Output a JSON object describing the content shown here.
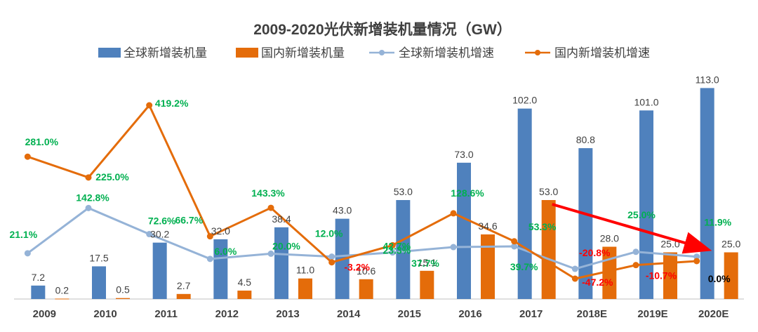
{
  "chart_data": {
    "type": "bar",
    "title": "2009-2020光伏新增装机量情况（GW）",
    "categories": [
      "2009",
      "2010",
      "2011",
      "2012",
      "2013",
      "2014",
      "2015",
      "2016",
      "2017",
      "2018E",
      "2019E",
      "2020E"
    ],
    "series": [
      {
        "name": "全球新增装机量",
        "kind": "bar",
        "color": "#4f81bd",
        "values": [
          7.2,
          17.5,
          30.2,
          32.0,
          38.4,
          43.0,
          53.0,
          73.0,
          102.0,
          80.8,
          101.0,
          113.0
        ],
        "labels": [
          "7.2",
          "17.5",
          "30.2",
          "32.0",
          "38.4",
          "43.0",
          "53.0",
          "73.0",
          "102.0",
          "80.8",
          "101.0",
          "113.0"
        ]
      },
      {
        "name": "国内新增装机量",
        "kind": "bar",
        "color": "#e46c0a",
        "values": [
          0.2,
          0.5,
          2.7,
          4.5,
          11.0,
          10.6,
          15.1,
          34.6,
          53.0,
          28.0,
          25.0,
          25.0
        ],
        "labels": [
          "0.2",
          "0.5",
          "2.7",
          "4.5",
          "11.0",
          "10.6",
          "15.1",
          "34.6",
          "53.0",
          "28.0",
          "25.0",
          "25.0"
        ]
      },
      {
        "name": "全球新增装机增速",
        "kind": "line",
        "color": "#95b3d7",
        "values": [
          21.1,
          142.8,
          72.6,
          6.0,
          20.0,
          12.0,
          23.3,
          37.7,
          39.7,
          -20.8,
          25.0,
          11.9
        ],
        "labels": [
          "21.1%",
          "142.8%",
          "72.6%",
          "6.0%",
          "20.0%",
          "12.0%",
          "23.3%",
          "37.7%",
          "39.7%",
          "-20.8%",
          "25.0%",
          "11.9%"
        ],
        "label_colors": [
          "#00b050",
          "#00b050",
          "#00b050",
          "#00b050",
          "#00b050",
          "#00b050",
          "#00b050",
          "#00b050",
          "#00b050",
          "#ff0000",
          "#00b050",
          "#00b050"
        ]
      },
      {
        "name": "国内新增装机增速",
        "kind": "line",
        "color": "#e46c0a",
        "values": [
          281.0,
          225.0,
          419.2,
          66.7,
          143.3,
          -3.2,
          42.7,
          128.6,
          53.3,
          -47.2,
          -10.7,
          0.0
        ],
        "labels": [
          "281.0%",
          "225.0%",
          "419.2%",
          "66.7%",
          "143.3%",
          "-3.2%",
          "42.7%",
          "128.6%",
          "53.3%",
          "-47.2%",
          "-10.7%",
          "0.0%"
        ],
        "label_colors": [
          "#00b050",
          "#00b050",
          "#00b050",
          "#00b050",
          "#00b050",
          "#ff0000",
          "#00b050",
          "#00b050",
          "#00b050",
          "#ff0000",
          "#ff0000",
          "#000000"
        ]
      }
    ],
    "ylim_bars": [
      0,
      120
    ],
    "ylim_rate": [
      -100,
      450
    ],
    "xlabel": "",
    "ylabel": "",
    "legend_position": "top",
    "annotation": "red arrow from 2017 to 2020E indicating declining trend",
    "arrow_color": "#ff0000",
    "gridlines": false
  }
}
